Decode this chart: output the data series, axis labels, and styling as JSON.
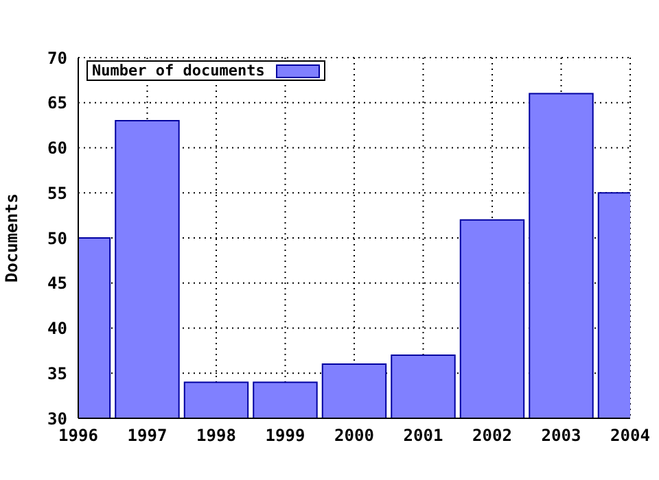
{
  "chart_data": {
    "type": "bar",
    "ylabel": "Documents",
    "x": [
      1996,
      1997,
      1998,
      1999,
      2000,
      2001,
      2002,
      2003,
      2004
    ],
    "series": [
      {
        "name": "Number of documents",
        "color": "#8080ff",
        "values": [
          50,
          63,
          34,
          34,
          36,
          37,
          52,
          66,
          55
        ]
      }
    ],
    "xlim": [
      1996,
      2004
    ],
    "xticks": [
      1996,
      1997,
      1998,
      1999,
      2000,
      2001,
      2002,
      2003,
      2004
    ],
    "ylim": [
      30,
      70
    ],
    "yticks": [
      30,
      35,
      40,
      45,
      50,
      55,
      60,
      65,
      70
    ],
    "grid": true,
    "legend": "top left"
  }
}
